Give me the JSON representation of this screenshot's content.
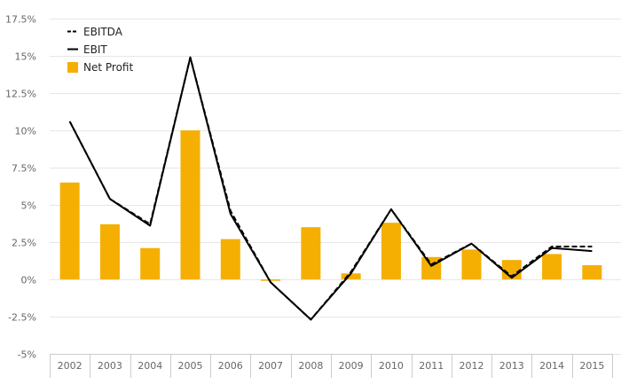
{
  "chart_data": {
    "type": "bar",
    "categories": [
      "2002",
      "2003",
      "2004",
      "2005",
      "2006",
      "2007",
      "2008",
      "2009",
      "2010",
      "2011",
      "2012",
      "2013",
      "2014",
      "2015"
    ],
    "series": [
      {
        "name": "EBITDA",
        "kind": "line",
        "style": "dashed",
        "color": "#000000",
        "values": [
          10.6,
          5.4,
          3.7,
          14.9,
          4.6,
          -0.2,
          -2.7,
          0.5,
          4.7,
          1.0,
          2.4,
          0.2,
          2.2,
          2.2
        ]
      },
      {
        "name": "EBIT",
        "kind": "line",
        "style": "solid",
        "color": "#000000",
        "values": [
          10.6,
          5.4,
          3.6,
          14.9,
          4.4,
          -0.2,
          -2.7,
          0.4,
          4.7,
          0.9,
          2.4,
          0.1,
          2.1,
          1.9
        ]
      },
      {
        "name": "Net Profit",
        "kind": "bar",
        "color": "#F5AF02",
        "values": [
          6.5,
          3.7,
          2.1,
          10.0,
          2.7,
          -0.1,
          3.5,
          0.4,
          3.8,
          1.5,
          2.0,
          1.3,
          1.7,
          0.95
        ]
      }
    ],
    "ylim": [
      -5,
      17.5
    ],
    "yticks": [
      -5,
      -2.5,
      0,
      2.5,
      5,
      7.5,
      10,
      12.5,
      15,
      17.5
    ],
    "ytick_labels": [
      "-5%",
      "-2.5%",
      "0%",
      "2.5%",
      "5%",
      "7.5%",
      "10%",
      "12.5%",
      "15%",
      "17.5%"
    ],
    "grid": true,
    "legend_position": "top-left",
    "title": "",
    "xlabel": "",
    "ylabel": ""
  }
}
